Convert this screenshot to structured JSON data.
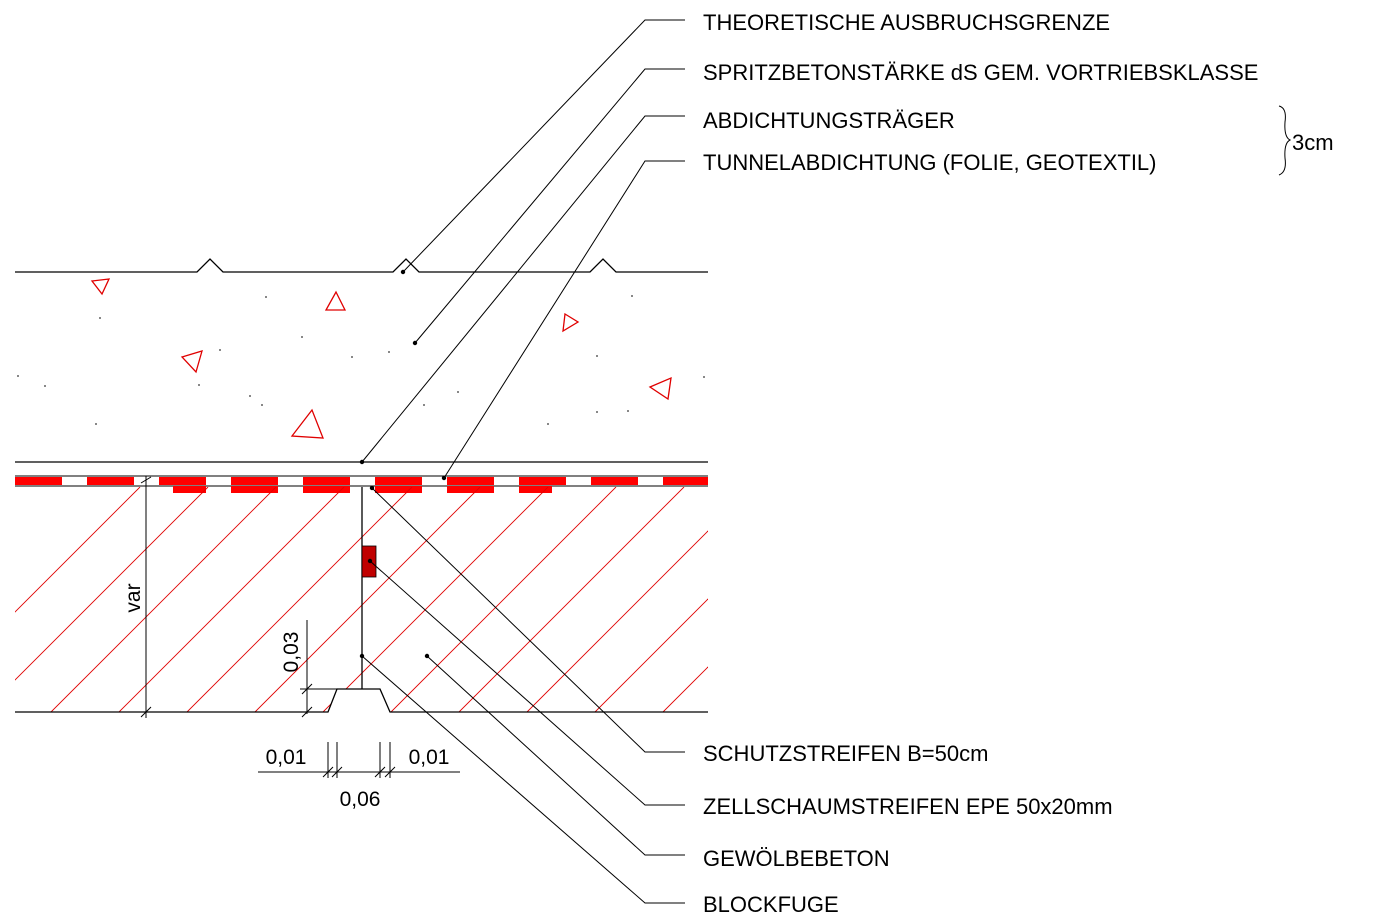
{
  "labels": {
    "top": [
      "THEORETISCHE AUSBRUCHSGRENZE",
      "SPRITZBETONSTÄRKE dS GEM. VORTRIEBSKLASSE",
      "ABDICHTUNGSTRÄGER",
      "TUNNELABDICHTUNG (FOLIE, GEOTEXTIL)"
    ],
    "bottom": [
      "SCHUTZSTREIFEN B=50cm",
      "ZELLSCHAUMSTREIFEN EPE 50x20mm",
      "GEWÖLBEBETON",
      "BLOCKFUGE"
    ],
    "brace_value": "3cm"
  },
  "dimensions": {
    "height": "var",
    "groove_depth": "0,03",
    "groove_edge_left": "0,01",
    "groove_edge_right": "0,01",
    "groove_width": "0,06"
  },
  "colors": {
    "line": "#000000",
    "accent_red": "#ff0000",
    "foam_strip": "#c00000",
    "hatch": "#e00000"
  }
}
